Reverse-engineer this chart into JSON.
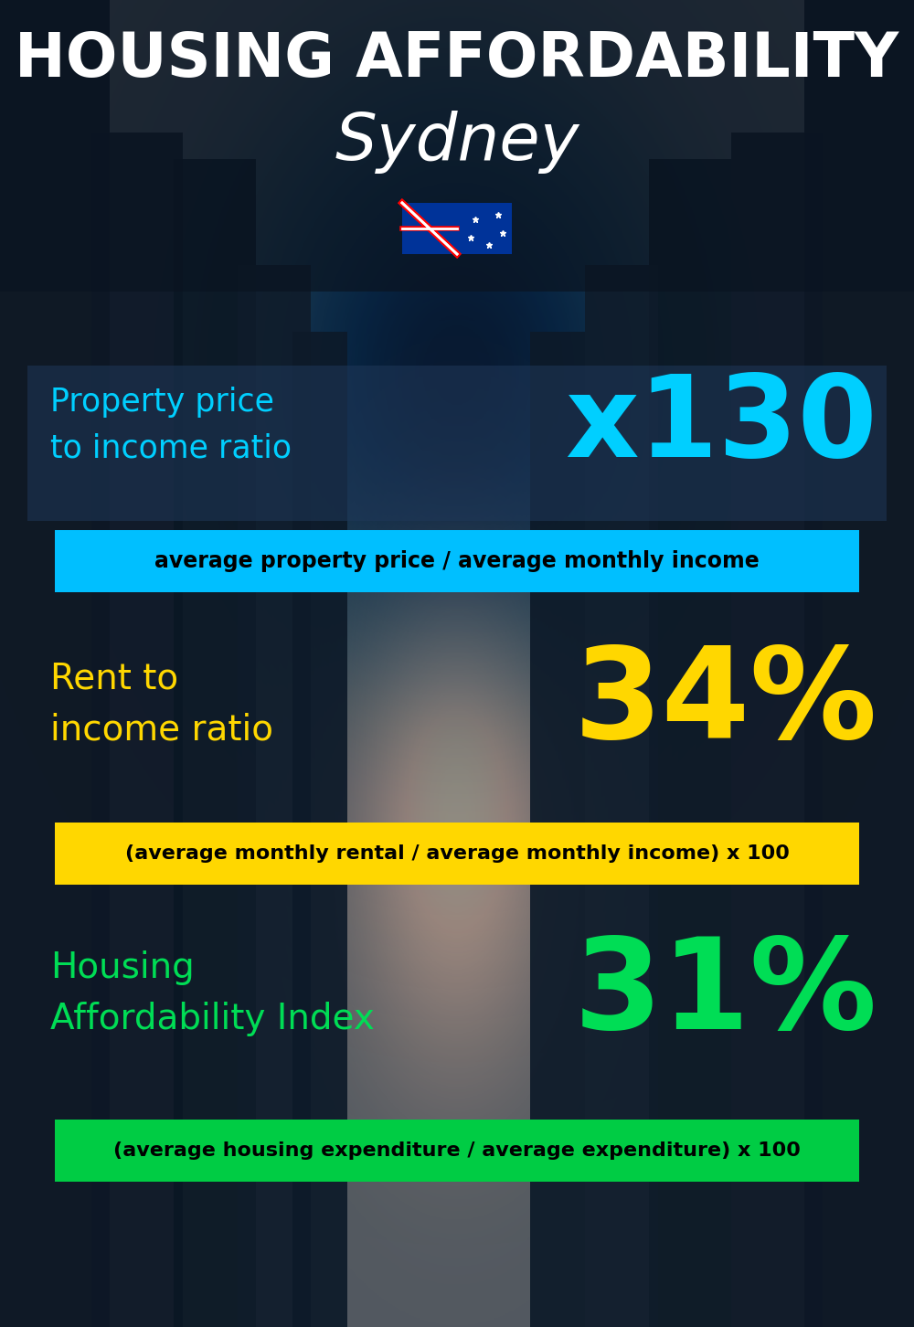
{
  "title_line1": "HOUSING AFFORDABILITY",
  "title_line2": "Sydney",
  "bg_color": "#0d1b2a",
  "section1_label": "Property price\nto income ratio",
  "section1_value": "x130",
  "section1_label_color": "#00cfff",
  "section1_value_color": "#00cfff",
  "section1_banner": "average property price / average monthly income",
  "section1_banner_bg": "#00bfff",
  "section1_banner_color": "#000000",
  "section2_label": "Rent to\nincome ratio",
  "section2_value": "34%",
  "section2_label_color": "#ffd700",
  "section2_value_color": "#ffd700",
  "section2_banner": "(average monthly rental / average monthly income) x 100",
  "section2_banner_bg": "#ffd700",
  "section2_banner_color": "#000000",
  "section3_label": "Housing\nAffordability Index",
  "section3_value": "31%",
  "section3_label_color": "#00dd55",
  "section3_value_color": "#00dd55",
  "section3_banner": "(average housing expenditure / average expenditure) x 100",
  "section3_banner_bg": "#00cc44",
  "section3_banner_color": "#000000",
  "title_color": "#ffffff",
  "subtitle_color": "#ffffff",
  "panel1_color": [
    0.12,
    0.22,
    0.35,
    0.55
  ],
  "panel2_color": [
    0.08,
    0.14,
    0.22,
    0.5
  ]
}
